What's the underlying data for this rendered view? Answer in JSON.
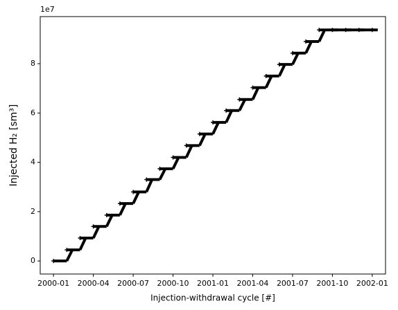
{
  "chart_data": {
    "type": "line",
    "xlabel": "Injection-withdrawal cycle [#]",
    "ylabel": "Injected H₂ [sm³]",
    "y_offset_label": "1e7",
    "x": [
      "2000-01",
      "2000-02",
      "2000-03",
      "2000-04",
      "2000-05",
      "2000-06",
      "2000-07",
      "2000-08",
      "2000-09",
      "2000-10",
      "2000-11",
      "2000-12",
      "2001-01",
      "2001-02",
      "2001-03",
      "2001-04",
      "2001-05",
      "2001-06",
      "2001-07",
      "2001-08",
      "2001-09",
      "2001-10",
      "2001-11",
      "2001-12",
      "2002-01"
    ],
    "series": [
      {
        "color": "#000000",
        "values": [
          0,
          0.45,
          0.93,
          1.4,
          1.86,
          2.33,
          2.8,
          3.3,
          3.74,
          4.2,
          4.68,
          5.15,
          5.62,
          6.1,
          6.55,
          7.03,
          7.5,
          7.97,
          8.43,
          8.9,
          9.37,
          9.37,
          9.37,
          9.37,
          9.37
        ]
      }
    ],
    "xlim": [
      "1999-12",
      "2002-02"
    ],
    "xticks": [
      "2000-01",
      "2000-04",
      "2000-07",
      "2000-10",
      "2001-01",
      "2001-04",
      "2001-07",
      "2001-10",
      "2002-01"
    ],
    "ylim": [
      -0.53,
      9.91
    ],
    "yticks": [
      0,
      2,
      4,
      6,
      8
    ]
  }
}
